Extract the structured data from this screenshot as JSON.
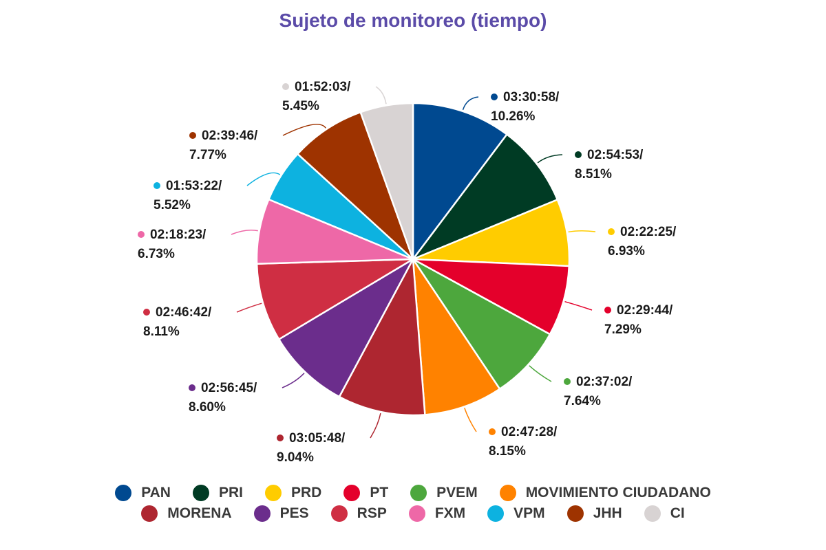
{
  "chart_data": {
    "type": "pie",
    "title": "Sujeto de monitoreo (tiempo)",
    "slices": [
      {
        "name": "PAN",
        "time": "03:30:58",
        "percent": 10.26,
        "label": "03:30:58/",
        "pct_label": "10.26%",
        "color": "#004990"
      },
      {
        "name": "PRI",
        "time": "02:54:53",
        "percent": 8.51,
        "label": "02:54:53/",
        "pct_label": "8.51%",
        "color": "#003B24"
      },
      {
        "name": "PRD",
        "time": "02:22:25",
        "percent": 6.93,
        "label": "02:22:25/",
        "pct_label": "6.93%",
        "color": "#FFCC00"
      },
      {
        "name": "PT",
        "time": "02:29:44",
        "percent": 7.29,
        "label": "02:29:44/",
        "pct_label": "7.29%",
        "color": "#E4002B"
      },
      {
        "name": "PVEM",
        "time": "02:37:02",
        "percent": 7.64,
        "label": "02:37:02/",
        "pct_label": "7.64%",
        "color": "#4DA73D"
      },
      {
        "name": "MOVIMIENTO CIUDADANO",
        "time": "02:47:28",
        "percent": 8.15,
        "label": "02:47:28/",
        "pct_label": "8.15%",
        "color": "#FF8200"
      },
      {
        "name": "MORENA",
        "time": "03:05:48",
        "percent": 9.04,
        "label": "03:05:48/",
        "pct_label": "9.04%",
        "color": "#AE2630"
      },
      {
        "name": "PES",
        "time": "02:56:45",
        "percent": 8.6,
        "label": "02:56:45/",
        "pct_label": "8.60%",
        "color": "#6B2D8C"
      },
      {
        "name": "RSP",
        "time": "02:46:42",
        "percent": 8.11,
        "label": "02:46:42/",
        "pct_label": "8.11%",
        "color": "#CF2E43"
      },
      {
        "name": "FXM",
        "time": "02:18:23",
        "percent": 6.73,
        "label": "02:18:23/",
        "pct_label": "6.73%",
        "color": "#EE68A7"
      },
      {
        "name": "VPM",
        "time": "01:53:22",
        "percent": 5.52,
        "label": "01:53:22/",
        "pct_label": "5.52%",
        "color": "#0DB2E0"
      },
      {
        "name": "JHH",
        "time": "02:39:46",
        "percent": 7.77,
        "label": "02:39:46/",
        "pct_label": "7.77%",
        "color": "#9E3300"
      },
      {
        "name": "CI",
        "time": "01:52:03",
        "percent": 5.45,
        "label": "01:52:03/",
        "pct_label": "5.45%",
        "color": "#D8D3D3"
      }
    ],
    "legend_position": "bottom"
  },
  "legend": {
    "rows": [
      [
        "PAN",
        "PRI",
        "PRD",
        "PT",
        "PVEM",
        "MOVIMIENTO CIUDADANO"
      ],
      [
        "MORENA",
        "PES",
        "RSP",
        "FXM",
        "VPM",
        "JHH",
        "CI"
      ]
    ]
  }
}
